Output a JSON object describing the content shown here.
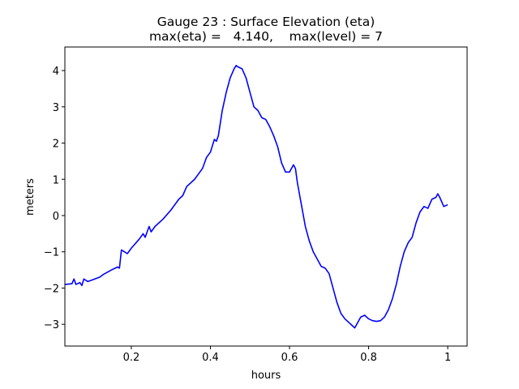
{
  "chart_data": {
    "type": "line",
    "title": "Gauge 23 : Surface Elevation (eta)",
    "subtitle": "max(eta) =   4.140,    max(level) = 7",
    "x_label": "hours",
    "y_label": "meters",
    "grid": false,
    "xlim": [
      0.032,
      1.049
    ],
    "ylim": [
      -3.6,
      4.65
    ],
    "xticks": [
      0.2,
      0.4,
      0.6,
      0.8,
      1.0
    ],
    "yticks": [
      {
        "value": -3,
        "label": "−3"
      },
      {
        "value": -2,
        "label": "−2"
      },
      {
        "value": -1,
        "label": "−1"
      },
      0,
      1,
      2,
      3,
      4
    ],
    "x": [
      0.033,
      0.05,
      0.055,
      0.06,
      0.07,
      0.075,
      0.08,
      0.09,
      0.1,
      0.12,
      0.13,
      0.15,
      0.165,
      0.17,
      0.175,
      0.19,
      0.2,
      0.22,
      0.23,
      0.235,
      0.24,
      0.245,
      0.25,
      0.26,
      0.28,
      0.3,
      0.32,
      0.33,
      0.34,
      0.36,
      0.38,
      0.39,
      0.4,
      0.41,
      0.415,
      0.42,
      0.43,
      0.44,
      0.45,
      0.46,
      0.465,
      0.47,
      0.48,
      0.49,
      0.5,
      0.51,
      0.52,
      0.53,
      0.54,
      0.55,
      0.56,
      0.57,
      0.58,
      0.59,
      0.6,
      0.61,
      0.615,
      0.62,
      0.63,
      0.64,
      0.65,
      0.66,
      0.67,
      0.68,
      0.69,
      0.7,
      0.71,
      0.72,
      0.73,
      0.74,
      0.75,
      0.76,
      0.765,
      0.77,
      0.78,
      0.79,
      0.8,
      0.81,
      0.82,
      0.83,
      0.84,
      0.85,
      0.86,
      0.87,
      0.88,
      0.89,
      0.9,
      0.91,
      0.92,
      0.93,
      0.94,
      0.95,
      0.96,
      0.97,
      0.975,
      0.98,
      0.99,
      1.0
    ],
    "series": [
      {
        "color": "#0000ff",
        "values": [
          -1.9,
          -1.88,
          -1.75,
          -1.9,
          -1.85,
          -1.93,
          -1.75,
          -1.82,
          -1.78,
          -1.7,
          -1.62,
          -1.5,
          -1.42,
          -1.45,
          -0.95,
          -1.05,
          -0.9,
          -0.65,
          -0.5,
          -0.6,
          -0.45,
          -0.3,
          -0.45,
          -0.3,
          -0.1,
          0.15,
          0.45,
          0.55,
          0.8,
          1.0,
          1.3,
          1.6,
          1.75,
          2.1,
          2.05,
          2.2,
          2.9,
          3.4,
          3.8,
          4.05,
          4.14,
          4.1,
          4.05,
          3.8,
          3.4,
          3.0,
          2.9,
          2.7,
          2.65,
          2.45,
          2.2,
          1.9,
          1.45,
          1.2,
          1.2,
          1.4,
          1.3,
          0.9,
          0.3,
          -0.3,
          -0.7,
          -1.0,
          -1.2,
          -1.4,
          -1.45,
          -1.6,
          -2.0,
          -2.4,
          -2.7,
          -2.85,
          -2.95,
          -3.05,
          -3.1,
          -3.0,
          -2.8,
          -2.75,
          -2.85,
          -2.9,
          -2.92,
          -2.9,
          -2.8,
          -2.6,
          -2.3,
          -1.9,
          -1.4,
          -1.0,
          -0.75,
          -0.6,
          -0.2,
          0.1,
          0.25,
          0.2,
          0.45,
          0.5,
          0.6,
          0.5,
          0.25,
          0.3
        ]
      }
    ]
  }
}
